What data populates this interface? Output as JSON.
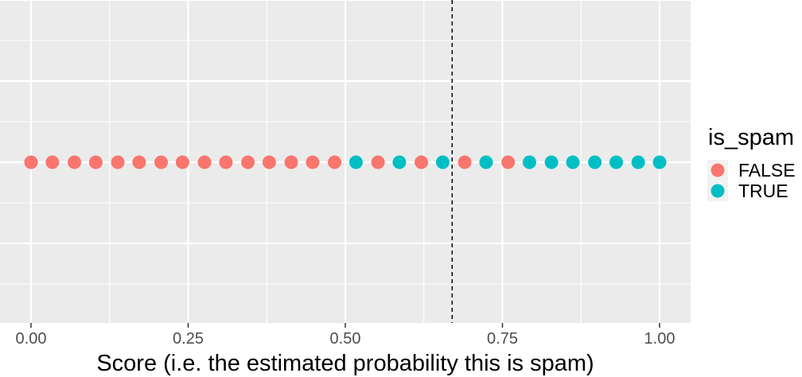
{
  "chart_data": {
    "type": "scatter",
    "xlabel": "Score (i.e. the estimated probability this is spam)",
    "xlim": [
      -0.035,
      1.035
    ],
    "x_ticks": [
      0,
      0.25,
      0.5,
      0.75,
      1.0
    ],
    "x_tick_labels": [
      "0.00",
      "0.25",
      "0.50",
      "0.75",
      "1.00"
    ],
    "threshold": 0.67,
    "grid": true,
    "legend": {
      "title": "is_spam",
      "position": "right",
      "entries": [
        {
          "label": "FALSE",
          "color": "#F8766D"
        },
        {
          "label": "TRUE",
          "color": "#00BFC4"
        }
      ]
    },
    "points": [
      {
        "x": 0.0,
        "is_spam": "FALSE"
      },
      {
        "x": 0.034,
        "is_spam": "FALSE"
      },
      {
        "x": 0.069,
        "is_spam": "FALSE"
      },
      {
        "x": 0.103,
        "is_spam": "FALSE"
      },
      {
        "x": 0.138,
        "is_spam": "FALSE"
      },
      {
        "x": 0.172,
        "is_spam": "FALSE"
      },
      {
        "x": 0.207,
        "is_spam": "FALSE"
      },
      {
        "x": 0.241,
        "is_spam": "FALSE"
      },
      {
        "x": 0.276,
        "is_spam": "FALSE"
      },
      {
        "x": 0.31,
        "is_spam": "FALSE"
      },
      {
        "x": 0.345,
        "is_spam": "FALSE"
      },
      {
        "x": 0.379,
        "is_spam": "FALSE"
      },
      {
        "x": 0.414,
        "is_spam": "FALSE"
      },
      {
        "x": 0.448,
        "is_spam": "FALSE"
      },
      {
        "x": 0.483,
        "is_spam": "FALSE"
      },
      {
        "x": 0.517,
        "is_spam": "TRUE"
      },
      {
        "x": 0.552,
        "is_spam": "FALSE"
      },
      {
        "x": 0.586,
        "is_spam": "TRUE"
      },
      {
        "x": 0.621,
        "is_spam": "FALSE"
      },
      {
        "x": 0.655,
        "is_spam": "TRUE"
      },
      {
        "x": 0.69,
        "is_spam": "FALSE"
      },
      {
        "x": 0.724,
        "is_spam": "TRUE"
      },
      {
        "x": 0.759,
        "is_spam": "FALSE"
      },
      {
        "x": 0.793,
        "is_spam": "TRUE"
      },
      {
        "x": 0.828,
        "is_spam": "TRUE"
      },
      {
        "x": 0.862,
        "is_spam": "TRUE"
      },
      {
        "x": 0.897,
        "is_spam": "TRUE"
      },
      {
        "x": 0.931,
        "is_spam": "TRUE"
      },
      {
        "x": 0.966,
        "is_spam": "TRUE"
      },
      {
        "x": 1.0,
        "is_spam": "TRUE"
      }
    ],
    "colors": {
      "panel": "#EBEBEB",
      "grid": "#FFFFFF",
      "threshold_line": "#000000"
    }
  }
}
